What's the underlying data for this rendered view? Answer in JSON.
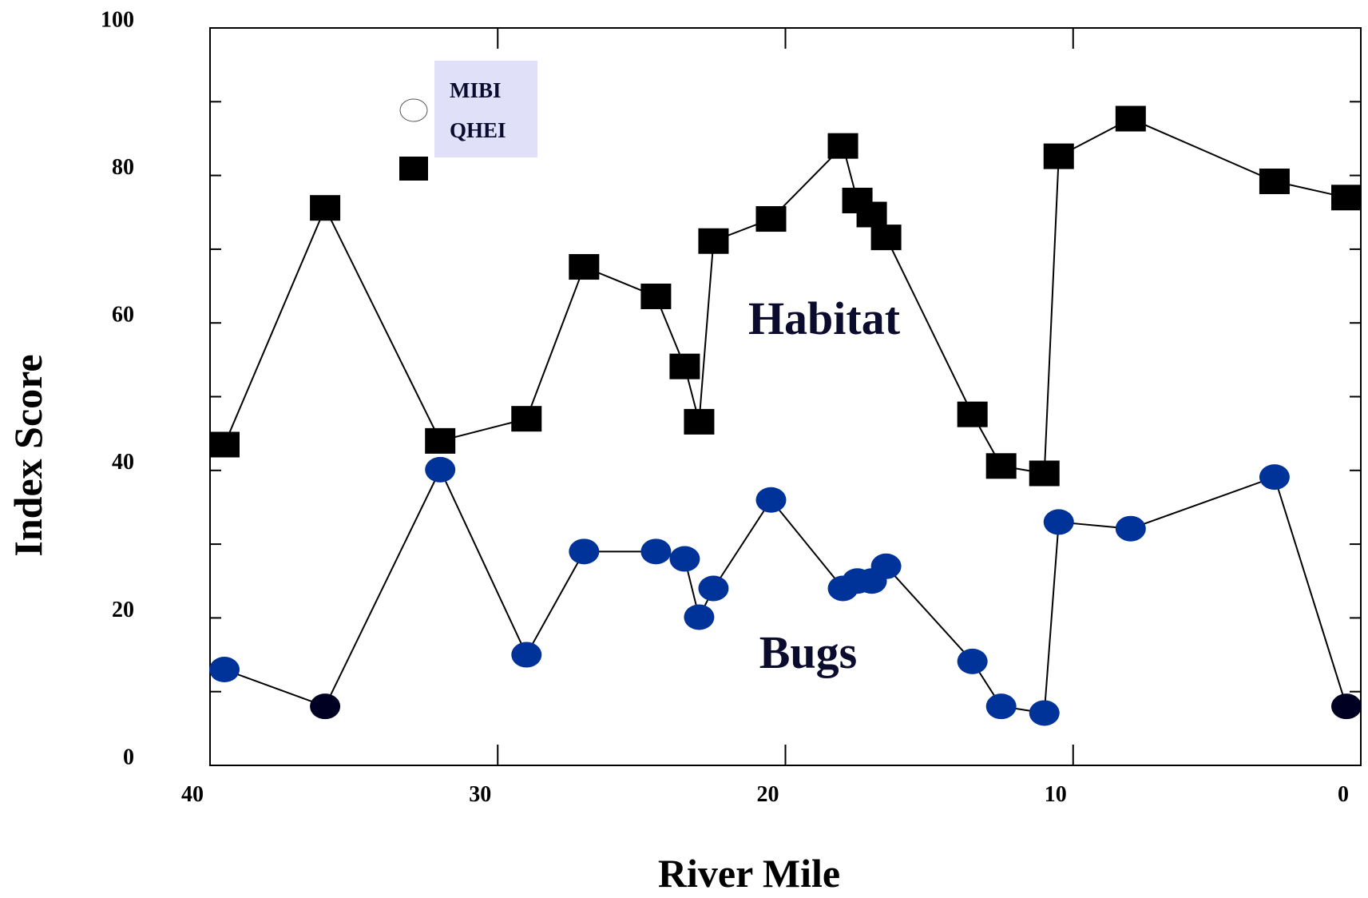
{
  "chart_data": {
    "type": "line",
    "x_label": "River Mile",
    "y_label": "Index Score",
    "xlim": [
      40,
      0
    ],
    "xticks": [
      40,
      30,
      20,
      10,
      0
    ],
    "ylim": [
      0,
      100
    ],
    "yticks": [
      0,
      20,
      40,
      60,
      80,
      100
    ],
    "yminorticks": [
      10,
      30,
      50,
      70,
      90
    ],
    "x": [
      39.5,
      36.0,
      32.0,
      29.0,
      27.0,
      24.5,
      23.5,
      23.0,
      22.5,
      20.5,
      18.0,
      17.5,
      17.0,
      16.5,
      13.5,
      12.5,
      11.0,
      10.5,
      8.0,
      3.0,
      0.5
    ],
    "series": [
      {
        "name": "MIBI",
        "marker": "circle",
        "color": "#003399",
        "point_colors": [
          "#003399",
          "#000022",
          "#003399",
          "#003399",
          "#003399",
          "#003399",
          "#003399",
          "#003399",
          "#003399",
          "#003399",
          "#003399",
          "#003399",
          "#003399",
          "#003399",
          "#003399",
          "#003399",
          "#003399",
          "#003399",
          "#003399",
          "#003399",
          "#000022"
        ],
        "values": [
          13.0,
          8.0,
          40.1,
          15.0,
          29.0,
          29.0,
          28.0,
          20.1,
          24.0,
          36.0,
          24.0,
          25.0,
          25.0,
          27.0,
          14.1,
          8.0,
          7.1,
          33.0,
          32.1,
          39.1,
          8.0
        ]
      },
      {
        "name": "QHEI",
        "marker": "square",
        "color": "#000000",
        "values": [
          43.5,
          75.6,
          44.0,
          47.0,
          67.6,
          63.6,
          54.1,
          46.6,
          71.1,
          74.1,
          84.0,
          76.6,
          74.7,
          71.6,
          47.6,
          40.6,
          39.6,
          82.6,
          87.7,
          79.2,
          77.0
        ]
      }
    ],
    "annotations": [
      "Habitat",
      "Bugs"
    ]
  }
}
